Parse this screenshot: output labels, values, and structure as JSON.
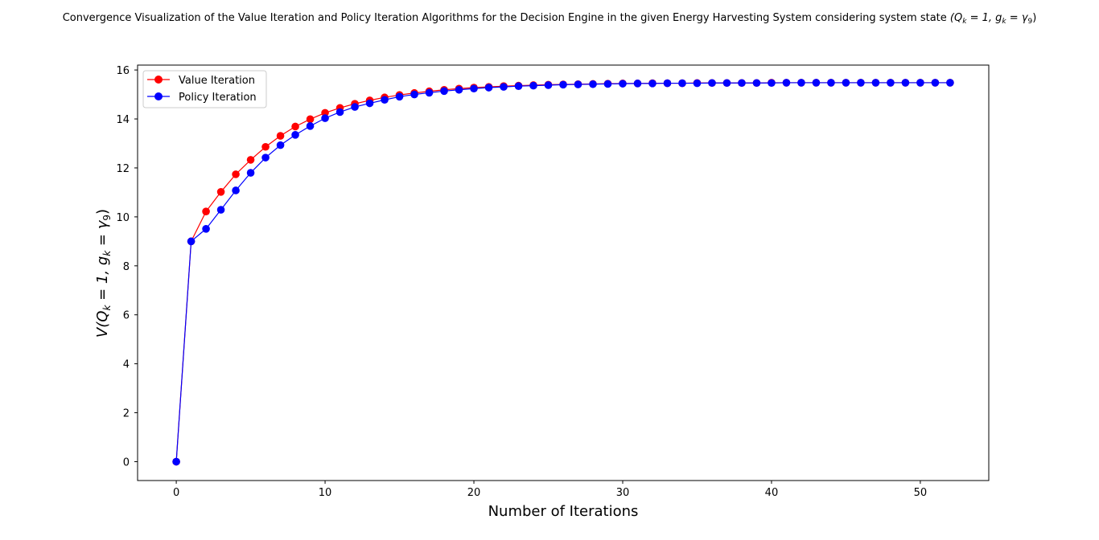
{
  "chart_data": {
    "type": "line",
    "title": "Convergence Visualization of the Value Iteration and Policy Iteration Algorithms for the Decision Engine in the given Energy Harvesting System considering system state",
    "title_math": "(Q",
    "title_math_sub1": "k",
    "title_math_mid": " = 1,  g",
    "title_math_sub2": "k",
    "title_math_end": " = γ",
    "title_math_sub3": "9",
    "title_math_close": ")",
    "xlabel": "Number of Iterations",
    "ylabel_pre": "V(Q",
    "ylabel_sub1": "k",
    "ylabel_mid": " = 1,  g",
    "ylabel_sub2": "k",
    "ylabel_end": " = γ",
    "ylabel_sub3": "9",
    "ylabel_close": ")",
    "xlim": [
      -2.6,
      54.6
    ],
    "ylim": [
      -0.77,
      16.2
    ],
    "xticks": [
      0,
      10,
      20,
      30,
      40,
      50
    ],
    "yticks": [
      0,
      2,
      4,
      6,
      8,
      10,
      12,
      14,
      16
    ],
    "grid": false,
    "legend_position": "top-left",
    "series": [
      {
        "name": "Value Iteration",
        "color": "#ff0000",
        "x": [
          0,
          1,
          2,
          3,
          4,
          5,
          6,
          7,
          8,
          9,
          10,
          11,
          12,
          13,
          14,
          15,
          16,
          17,
          18,
          19,
          20,
          21,
          22,
          23,
          24,
          25,
          26,
          27,
          28,
          29,
          30,
          31,
          32,
          33,
          34,
          35,
          36,
          37,
          38,
          39,
          40,
          41,
          42,
          43,
          44,
          45,
          46,
          47,
          48,
          49,
          50,
          51,
          52
        ],
        "y": [
          0,
          9.0,
          10.22,
          11.02,
          11.74,
          12.33,
          12.86,
          13.31,
          13.69,
          13.99,
          14.25,
          14.45,
          14.62,
          14.76,
          14.88,
          14.98,
          15.06,
          15.13,
          15.19,
          15.24,
          15.28,
          15.31,
          15.34,
          15.36,
          15.38,
          15.4,
          15.41,
          15.42,
          15.43,
          15.44,
          15.45,
          15.45,
          15.46,
          15.46,
          15.46,
          15.47,
          15.47,
          15.47,
          15.47,
          15.47,
          15.48,
          15.48,
          15.48,
          15.48,
          15.48,
          15.48,
          15.48,
          15.48,
          15.48,
          15.48,
          15.48,
          15.48,
          15.48
        ]
      },
      {
        "name": "Policy Iteration",
        "color": "#0000ff",
        "x": [
          0,
          1,
          2,
          3,
          4,
          5,
          6,
          7,
          8,
          9,
          10,
          11,
          12,
          13,
          14,
          15,
          16,
          17,
          18,
          19,
          20,
          21,
          22,
          23,
          24,
          25,
          26,
          27,
          28,
          29,
          30,
          31,
          32,
          33,
          34,
          35,
          36,
          37,
          38,
          39,
          40,
          41,
          42,
          43,
          44,
          45,
          46,
          47,
          48,
          49,
          50,
          51,
          52
        ],
        "y": [
          0,
          9.0,
          9.51,
          10.29,
          11.08,
          11.8,
          12.42,
          12.93,
          13.35,
          13.71,
          14.03,
          14.28,
          14.49,
          14.64,
          14.78,
          14.91,
          15.0,
          15.07,
          15.14,
          15.19,
          15.24,
          15.28,
          15.31,
          15.34,
          15.36,
          15.38,
          15.4,
          15.41,
          15.42,
          15.43,
          15.44,
          15.45,
          15.45,
          15.46,
          15.46,
          15.46,
          15.47,
          15.47,
          15.47,
          15.47,
          15.47,
          15.48,
          15.48,
          15.48,
          15.48,
          15.48,
          15.48,
          15.48,
          15.48,
          15.48,
          15.48,
          15.48,
          15.48
        ]
      }
    ]
  }
}
